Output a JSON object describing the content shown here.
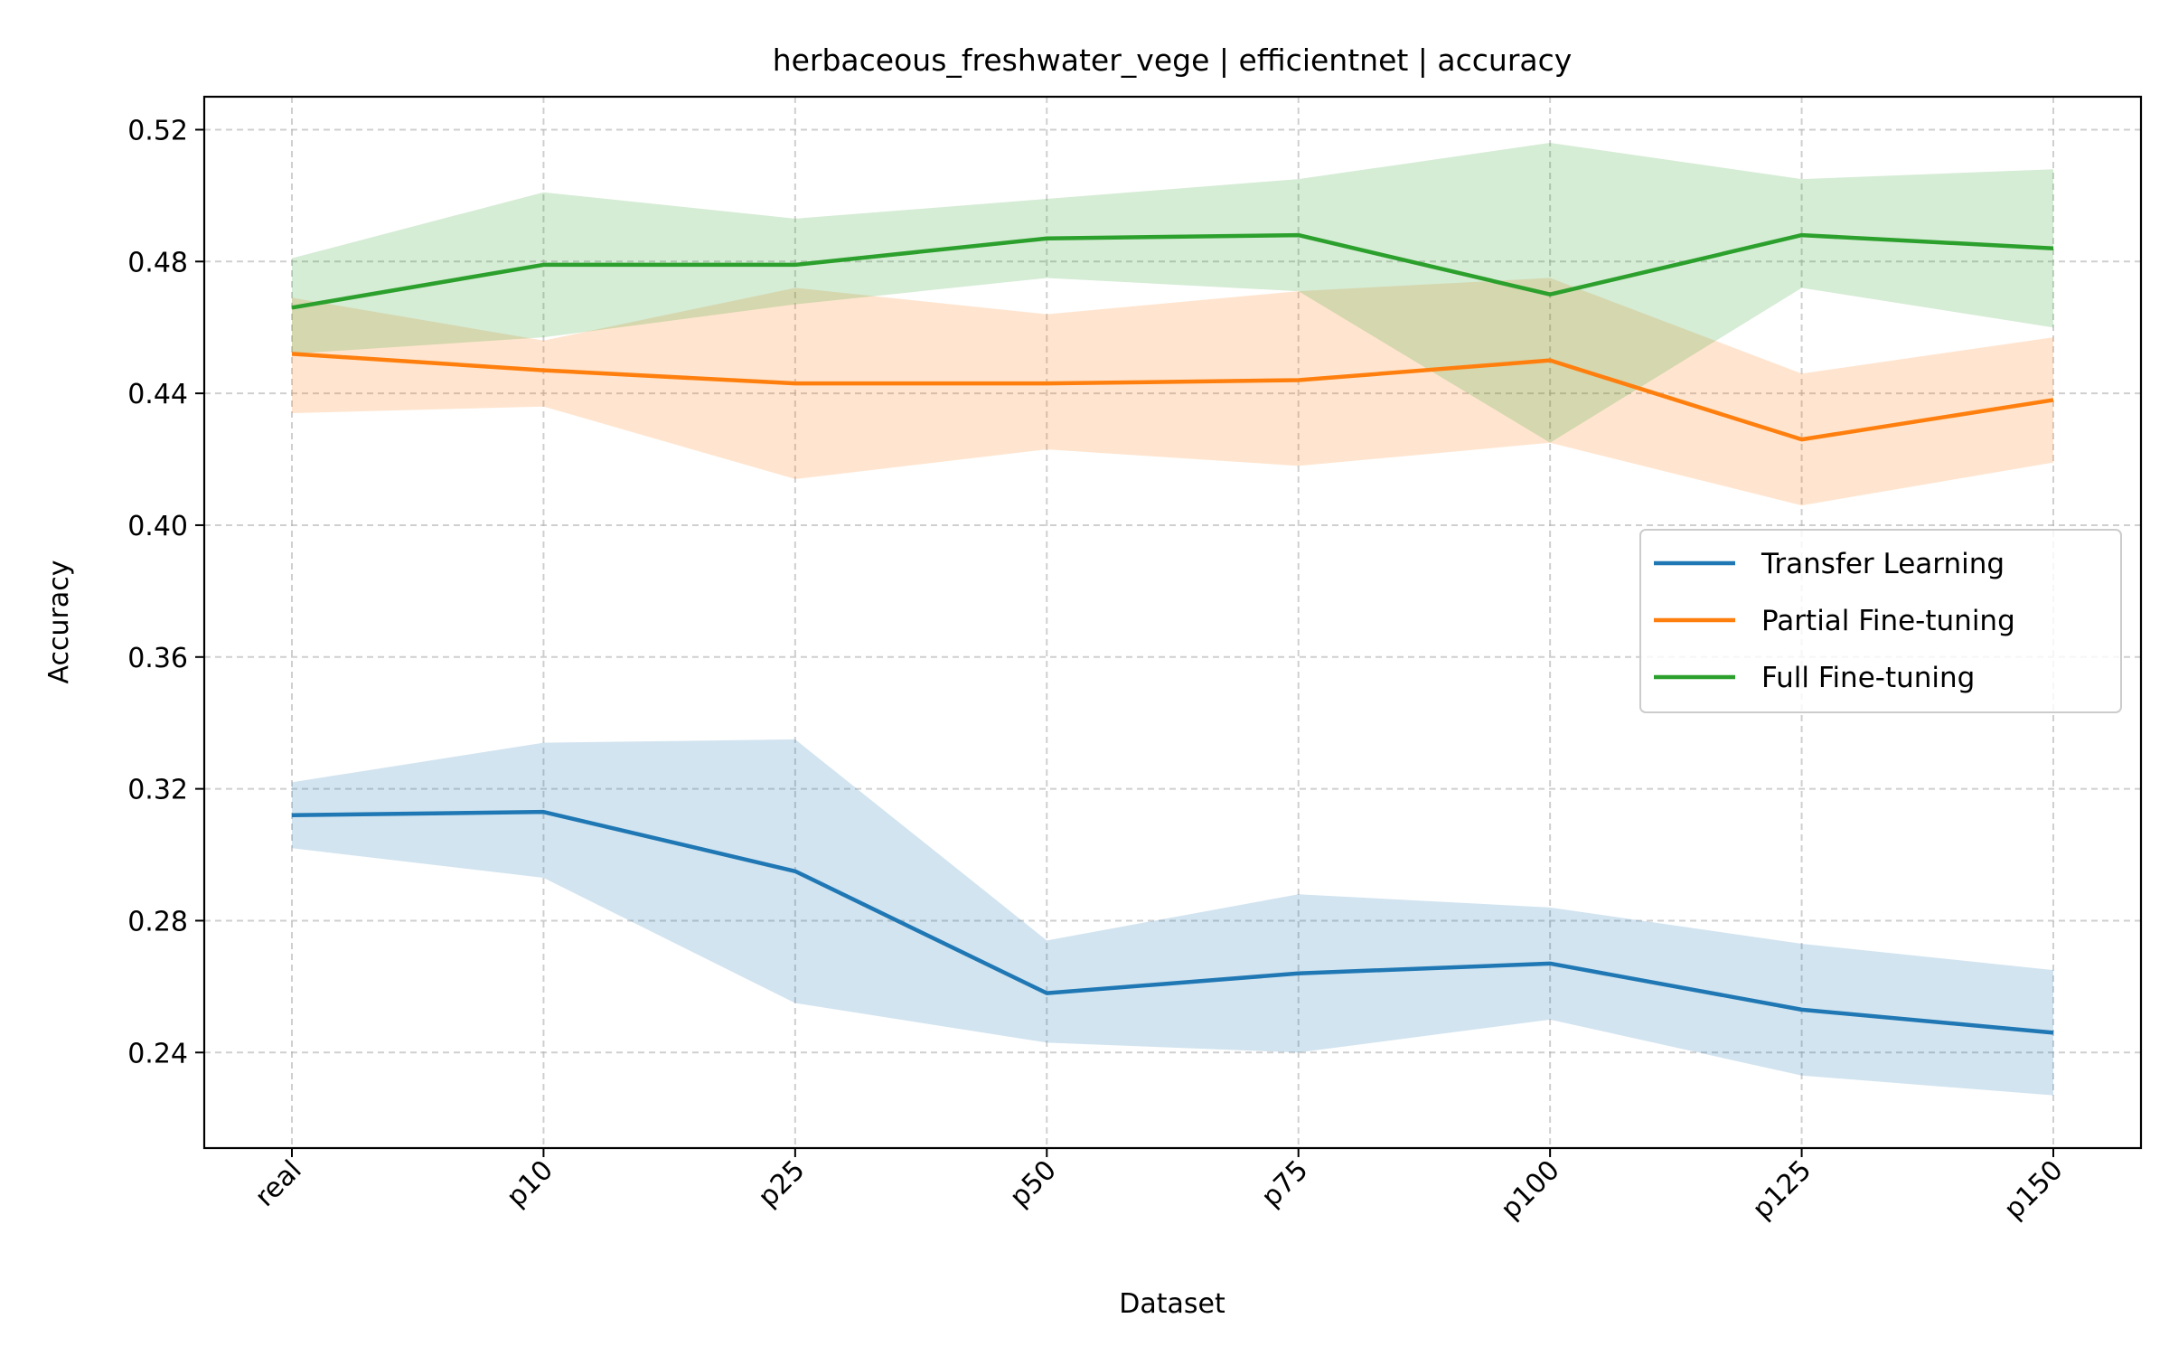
{
  "chart_data": {
    "type": "line",
    "title": "herbaceous_freshwater_vege | efficientnet | accuracy",
    "xlabel": "Dataset",
    "ylabel": "Accuracy",
    "categories": [
      "real",
      "p10",
      "p25",
      "p50",
      "p75",
      "p100",
      "p125",
      "p150"
    ],
    "ylim": [
      0.211,
      0.53
    ],
    "yticks": [
      0.24,
      0.28,
      0.32,
      0.36,
      0.4,
      0.44,
      0.48,
      0.52
    ],
    "ytick_labels": [
      "0.24",
      "0.28",
      "0.32",
      "0.36",
      "0.40",
      "0.44",
      "0.48",
      "0.52"
    ],
    "grid": true,
    "legend_position": "center-right",
    "series": [
      {
        "name": "Transfer Learning",
        "color": "#1f77b4",
        "values": [
          0.312,
          0.313,
          0.295,
          0.258,
          0.264,
          0.267,
          0.253,
          0.246
        ],
        "lower": [
          0.302,
          0.293,
          0.255,
          0.243,
          0.24,
          0.25,
          0.233,
          0.227
        ],
        "upper": [
          0.322,
          0.334,
          0.335,
          0.274,
          0.288,
          0.284,
          0.273,
          0.265
        ]
      },
      {
        "name": "Partial Fine-tuning",
        "color": "#ff7f0e",
        "values": [
          0.452,
          0.447,
          0.443,
          0.443,
          0.444,
          0.45,
          0.426,
          0.438
        ],
        "lower": [
          0.434,
          0.436,
          0.414,
          0.423,
          0.418,
          0.425,
          0.406,
          0.419
        ],
        "upper": [
          0.469,
          0.456,
          0.472,
          0.464,
          0.471,
          0.475,
          0.446,
          0.457
        ]
      },
      {
        "name": "Full Fine-tuning",
        "color": "#2ca02c",
        "values": [
          0.466,
          0.479,
          0.479,
          0.487,
          0.488,
          0.47,
          0.488,
          0.484
        ],
        "lower": [
          0.452,
          0.457,
          0.467,
          0.475,
          0.471,
          0.425,
          0.472,
          0.46
        ],
        "upper": [
          0.481,
          0.501,
          0.493,
          0.499,
          0.505,
          0.516,
          0.505,
          0.508
        ]
      }
    ]
  }
}
